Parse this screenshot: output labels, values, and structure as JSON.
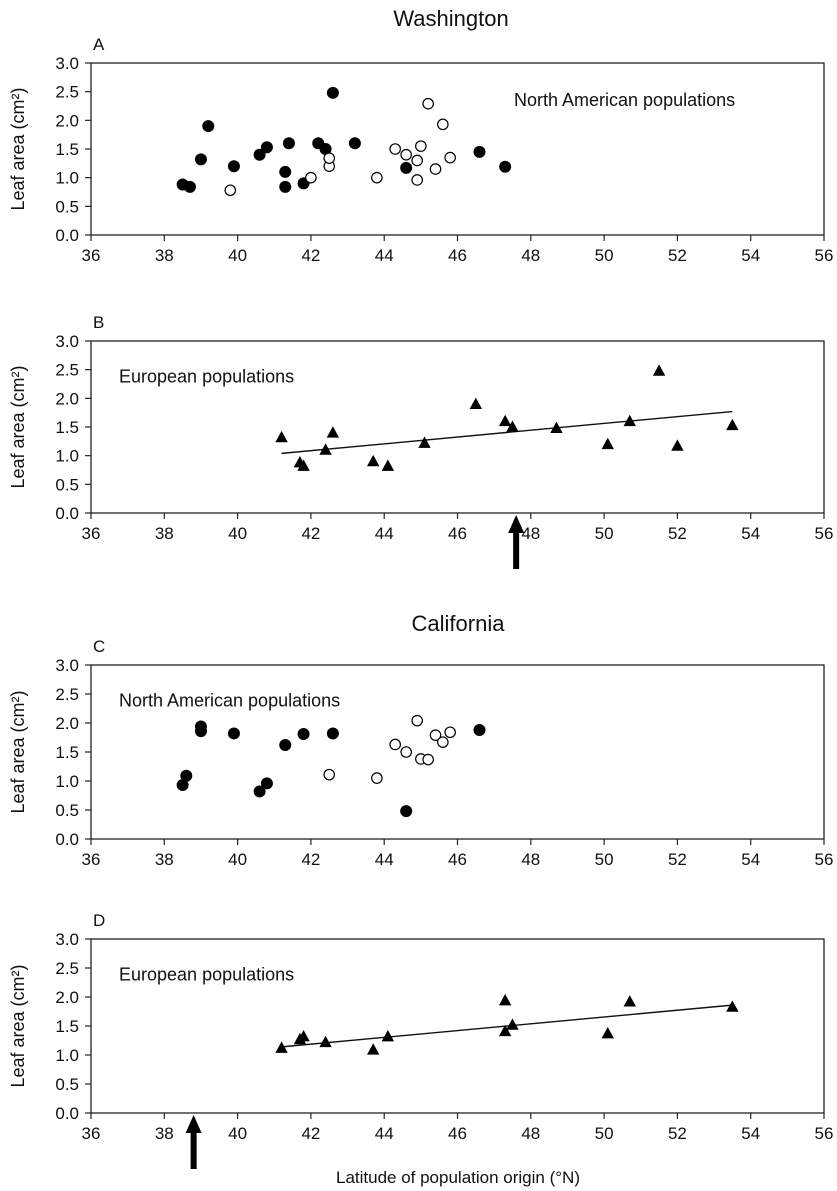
{
  "figure": {
    "section_titles": [
      "Washington",
      "California"
    ],
    "xlabel": "Latitude of population origin (°N)"
  },
  "chart_data": [
    {
      "type": "scatter",
      "panel_label": "A",
      "title": "Washington",
      "annotation": "North American populations",
      "xlabel": "",
      "ylabel": "Leaf area (cm²)",
      "xlim": [
        36,
        56
      ],
      "ylim": [
        0,
        3
      ],
      "xticks": [
        36,
        38,
        40,
        42,
        44,
        46,
        48,
        50,
        52,
        54,
        56
      ],
      "yticks": [
        "0.0",
        "0.5",
        "1.0",
        "1.5",
        "2.0",
        "2.5",
        "3.0"
      ],
      "grid": false,
      "series": [
        {
          "marker": "filled-circle",
          "color": "#000000",
          "points": [
            [
              38.5,
              0.88
            ],
            [
              38.7,
              0.84
            ],
            [
              39.0,
              1.32
            ],
            [
              39.2,
              1.9
            ],
            [
              39.9,
              1.2
            ],
            [
              40.6,
              1.4
            ],
            [
              40.8,
              1.53
            ],
            [
              41.3,
              0.84
            ],
            [
              41.3,
              1.1
            ],
            [
              41.4,
              1.6
            ],
            [
              41.8,
              0.9
            ],
            [
              42.2,
              1.6
            ],
            [
              42.4,
              1.5
            ],
            [
              42.6,
              2.48
            ],
            [
              43.2,
              1.6
            ],
            [
              44.6,
              1.17
            ],
            [
              46.6,
              1.45
            ],
            [
              47.3,
              1.19
            ]
          ]
        },
        {
          "marker": "open-circle",
          "color": "#000000",
          "points": [
            [
              39.8,
              0.78
            ],
            [
              42.0,
              1.0
            ],
            [
              42.5,
              1.2
            ],
            [
              42.5,
              1.34
            ],
            [
              43.8,
              1.0
            ],
            [
              44.3,
              1.5
            ],
            [
              44.6,
              1.4
            ],
            [
              44.9,
              0.96
            ],
            [
              44.9,
              1.3
            ],
            [
              45.0,
              1.55
            ],
            [
              45.2,
              2.29
            ],
            [
              45.4,
              1.15
            ],
            [
              45.6,
              1.93
            ],
            [
              45.8,
              1.35
            ]
          ]
        }
      ]
    },
    {
      "type": "scatter",
      "panel_label": "B",
      "annotation": "European populations",
      "xlabel": "",
      "ylabel": "Leaf area (cm²)",
      "xlim": [
        36,
        56
      ],
      "ylim": [
        0,
        3
      ],
      "xticks": [
        36,
        38,
        40,
        42,
        44,
        46,
        48,
        50,
        52,
        54,
        56
      ],
      "yticks": [
        "0.0",
        "0.5",
        "1.0",
        "1.5",
        "2.0",
        "2.5",
        "3.0"
      ],
      "grid": false,
      "arrow_at_latitude": 47.6,
      "series": [
        {
          "marker": "filled-triangle",
          "color": "#000000",
          "points": [
            [
              41.2,
              1.32
            ],
            [
              41.7,
              0.88
            ],
            [
              41.8,
              0.82
            ],
            [
              42.4,
              1.1
            ],
            [
              42.6,
              1.4
            ],
            [
              43.7,
              0.9
            ],
            [
              44.1,
              0.82
            ],
            [
              45.1,
              1.22
            ],
            [
              46.5,
              1.9
            ],
            [
              47.3,
              1.6
            ],
            [
              47.5,
              1.5
            ],
            [
              48.7,
              1.48
            ],
            [
              50.1,
              1.2
            ],
            [
              50.7,
              1.6
            ],
            [
              51.5,
              2.48
            ],
            [
              52.0,
              1.17
            ],
            [
              53.5,
              1.53
            ]
          ]
        }
      ],
      "trendline": [
        [
          41.2,
          1.04
        ],
        [
          53.5,
          1.77
        ]
      ]
    },
    {
      "type": "scatter",
      "panel_label": "C",
      "title": "California",
      "annotation": "North American populations",
      "xlabel": "",
      "ylabel": "Leaf area (cm²)",
      "xlim": [
        36,
        56
      ],
      "ylim": [
        0,
        3
      ],
      "xticks": [
        36,
        38,
        40,
        42,
        44,
        46,
        48,
        50,
        52,
        54,
        56
      ],
      "yticks": [
        "0.0",
        "0.5",
        "1.0",
        "1.5",
        "2.0",
        "2.5",
        "3.0"
      ],
      "grid": false,
      "series": [
        {
          "marker": "filled-circle",
          "color": "#000000",
          "points": [
            [
              38.5,
              0.93
            ],
            [
              38.6,
              1.09
            ],
            [
              39.0,
              1.86
            ],
            [
              39.0,
              1.94
            ],
            [
              39.9,
              1.82
            ],
            [
              40.6,
              0.82
            ],
            [
              40.8,
              0.96
            ],
            [
              41.3,
              1.62
            ],
            [
              41.8,
              1.81
            ],
            [
              42.6,
              1.82
            ],
            [
              44.6,
              0.48
            ],
            [
              46.6,
              1.88
            ]
          ]
        },
        {
          "marker": "open-circle",
          "color": "#000000",
          "points": [
            [
              42.5,
              1.11
            ],
            [
              43.8,
              1.05
            ],
            [
              44.3,
              1.63
            ],
            [
              44.6,
              1.5
            ],
            [
              44.9,
              2.04
            ],
            [
              45.0,
              1.38
            ],
            [
              45.2,
              1.37
            ],
            [
              45.4,
              1.79
            ],
            [
              45.6,
              1.67
            ],
            [
              45.8,
              1.84
            ]
          ]
        }
      ]
    },
    {
      "type": "scatter",
      "panel_label": "D",
      "annotation": "European populations",
      "xlabel": "Latitude of population origin (°N)",
      "ylabel": "Leaf area (cm²)",
      "xlim": [
        36,
        56
      ],
      "ylim": [
        0,
        3
      ],
      "xticks": [
        36,
        38,
        40,
        42,
        44,
        46,
        48,
        50,
        52,
        54,
        56
      ],
      "yticks": [
        "0.0",
        "0.5",
        "1.0",
        "1.5",
        "2.0",
        "2.5",
        "3.0"
      ],
      "grid": false,
      "arrow_at_latitude": 38.8,
      "series": [
        {
          "marker": "filled-triangle",
          "color": "#000000",
          "points": [
            [
              41.2,
              1.12
            ],
            [
              41.7,
              1.27
            ],
            [
              41.8,
              1.32
            ],
            [
              42.4,
              1.22
            ],
            [
              43.7,
              1.09
            ],
            [
              44.1,
              1.32
            ],
            [
              47.3,
              1.94
            ],
            [
              47.3,
              1.41
            ],
            [
              47.5,
              1.52
            ],
            [
              50.1,
              1.37
            ],
            [
              50.7,
              1.92
            ],
            [
              53.5,
              1.83
            ]
          ]
        }
      ],
      "trendline": [
        [
          41.2,
          1.14
        ],
        [
          53.5,
          1.86
        ]
      ]
    }
  ]
}
